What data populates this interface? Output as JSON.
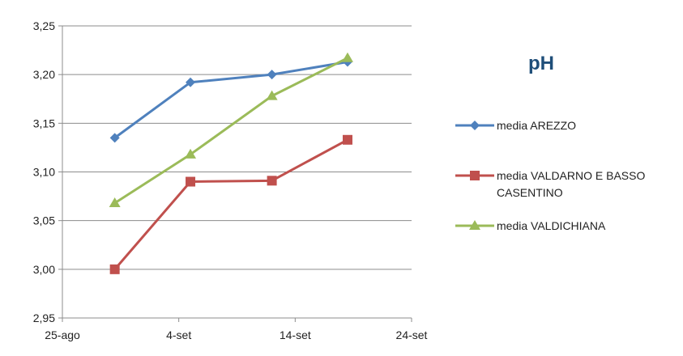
{
  "chart_data": {
    "type": "line",
    "title": "pH",
    "xlabel": "",
    "ylabel": "",
    "x_tick_labels": [
      "25-ago",
      "4-set",
      "14-set",
      "24-set"
    ],
    "x_ticks": [
      0,
      10,
      20,
      30
    ],
    "xlim": [
      0,
      30
    ],
    "ylim": [
      2.95,
      3.25
    ],
    "y_ticks": [
      2.95,
      3.0,
      3.05,
      3.1,
      3.15,
      3.2,
      3.25
    ],
    "y_tick_labels": [
      "2,95",
      "3,00",
      "3,05",
      "3,10",
      "3,15",
      "3,20",
      "3,25"
    ],
    "grid": "horizontal",
    "legend_position": "right",
    "series": [
      {
        "name": "media AREZZO",
        "color": "#4f81bd",
        "marker": "diamond",
        "x": [
          4.5,
          11,
          18,
          24.5
        ],
        "y": [
          3.135,
          3.192,
          3.2,
          3.213
        ]
      },
      {
        "name": "media VALDARNO E BASSO CASENTINO",
        "name_lines": [
          "media VALDARNO E BASSO",
          "CASENTINO"
        ],
        "color": "#c0504d",
        "marker": "square",
        "x": [
          4.5,
          11,
          18,
          24.5
        ],
        "y": [
          3.0,
          3.09,
          3.091,
          3.133
        ]
      },
      {
        "name": "media VALDICHIANA",
        "color": "#9bbb59",
        "marker": "triangle",
        "x": [
          4.5,
          11,
          18,
          24.5
        ],
        "y": [
          3.068,
          3.118,
          3.178,
          3.217
        ]
      }
    ]
  }
}
